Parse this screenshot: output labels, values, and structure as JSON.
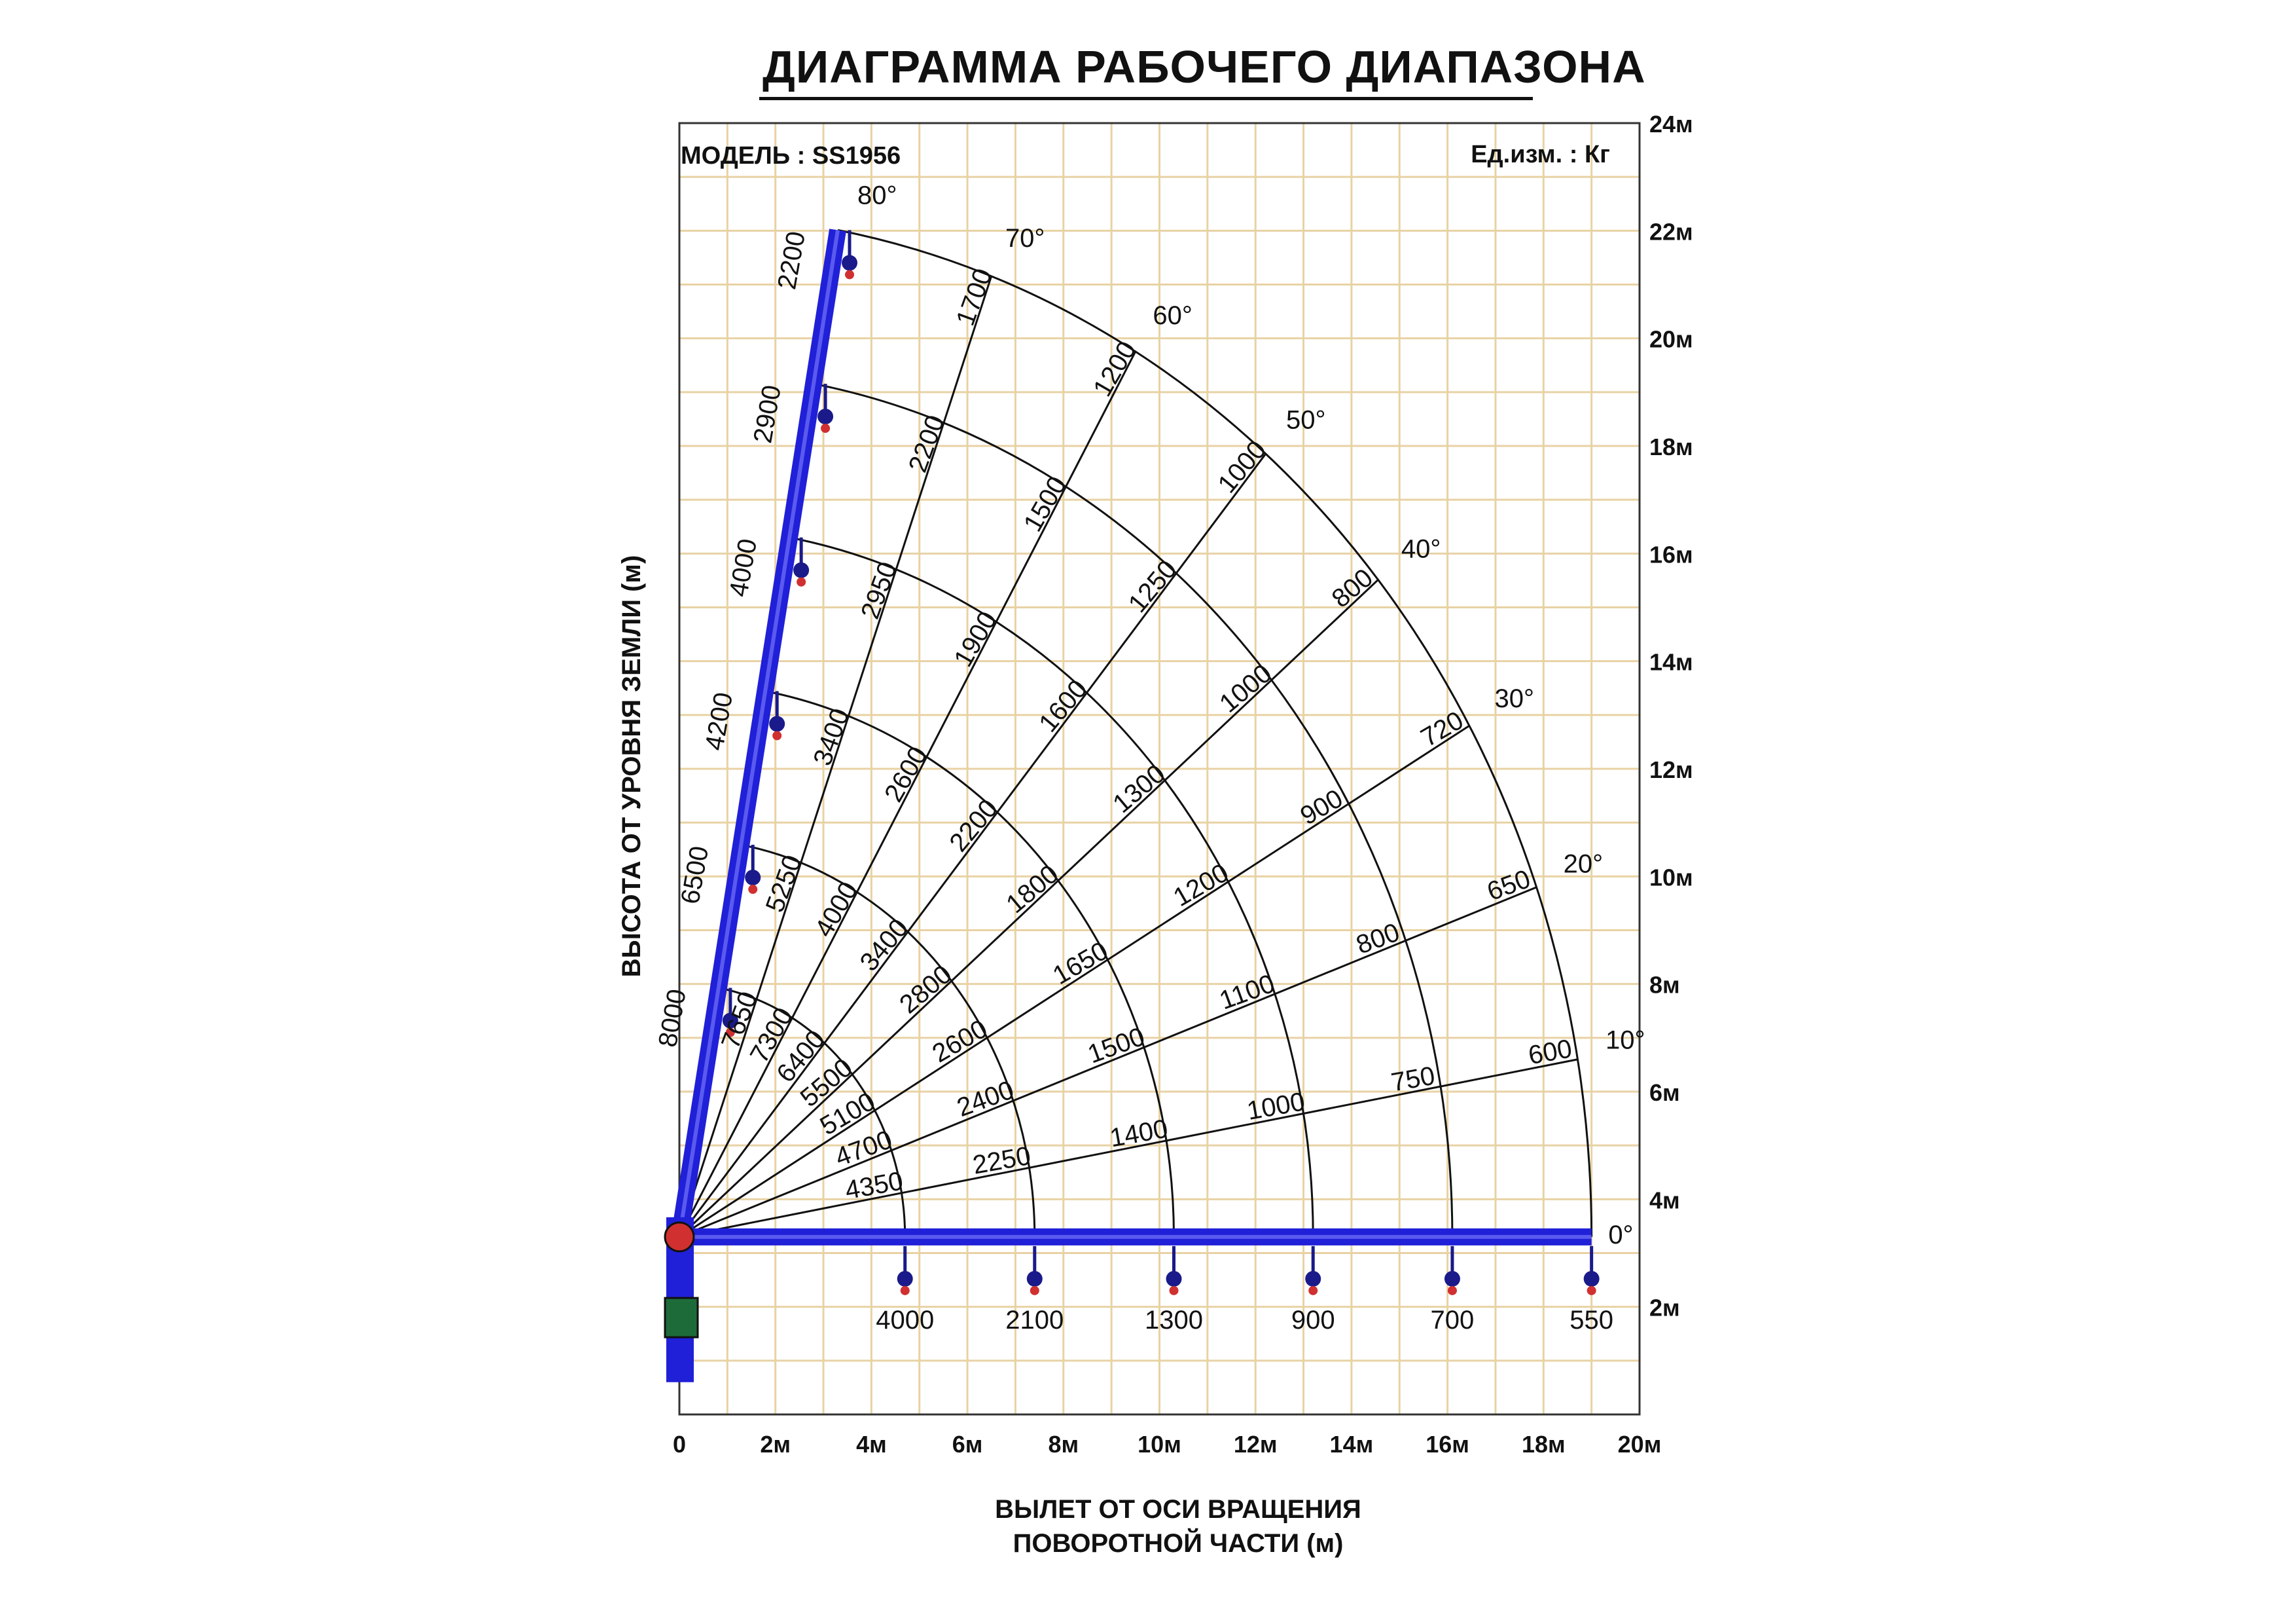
{
  "header": {
    "title": "ДИАГРАММА РАБОЧЕГО ДИАПАЗОНА",
    "model": "МОДЕЛЬ : SS1956",
    "units": "Ед.изм. : Кг"
  },
  "axes": {
    "xlabel_line1": "ВЫЛЕТ ОТ ОСИ ВРАЩЕНИЯ",
    "xlabel_line2": "ПОВОРОТНОЙ ЧАСТИ (м)",
    "ylabel": "ВЫСОТА ОТ УРОВНЯ ЗЕМЛИ (м)",
    "x_ticks": [
      "0",
      "2м",
      "4м",
      "6м",
      "8м",
      "10м",
      "12м",
      "14м",
      "16м",
      "18м",
      "20м"
    ],
    "y_ticks": [
      "2м",
      "4м",
      "6м",
      "8м",
      "10м",
      "12м",
      "14м",
      "16м",
      "18м",
      "20м",
      "22м",
      "24м"
    ]
  },
  "chart_data": {
    "type": "crane load chart",
    "xlim": [
      0,
      20
    ],
    "ylim": [
      0,
      24
    ],
    "pivot": [
      0,
      3.3
    ],
    "grid": true,
    "boom_lengths_m": [
      4.7,
      7.4,
      10.3,
      13.2,
      16.1,
      19.0
    ],
    "angles_deg": [
      0,
      10,
      20,
      30,
      40,
      50,
      60,
      70,
      80
    ],
    "angle_labels": [
      "0°",
      "10°",
      "20°",
      "30°",
      "40°",
      "50°",
      "60°",
      "70°",
      "80°"
    ],
    "loads_kg": {
      "0": [
        "4000",
        "2100",
        "1300",
        "900",
        "700",
        "550"
      ],
      "10": [
        "4350",
        "2250",
        "1400",
        "1000",
        "750",
        "600"
      ],
      "20": [
        "4700",
        "2400",
        "1500",
        "1100",
        "800",
        "650"
      ],
      "30": [
        "5100",
        "2600",
        "1650",
        "1200",
        "900",
        "720"
      ],
      "40": [
        "5500",
        "2800",
        "1800",
        "1300",
        "1000",
        "800"
      ],
      "50": [
        "6400",
        "3400",
        "2200",
        "1600",
        "1250",
        "1000"
      ],
      "60": [
        "7300",
        "4000",
        "2600",
        "1900",
        "1500",
        "1200"
      ],
      "70": [
        "7650",
        "5250",
        "3400",
        "2950",
        "2200",
        "1700"
      ],
      "80": [
        "8000",
        "6500",
        "4200",
        "4000",
        "2900",
        "2200"
      ]
    },
    "colors": {
      "boom": "#2020d8",
      "grid": "#e8d2a4",
      "hook": "#1a1a8a",
      "accent": "#d03030"
    }
  }
}
